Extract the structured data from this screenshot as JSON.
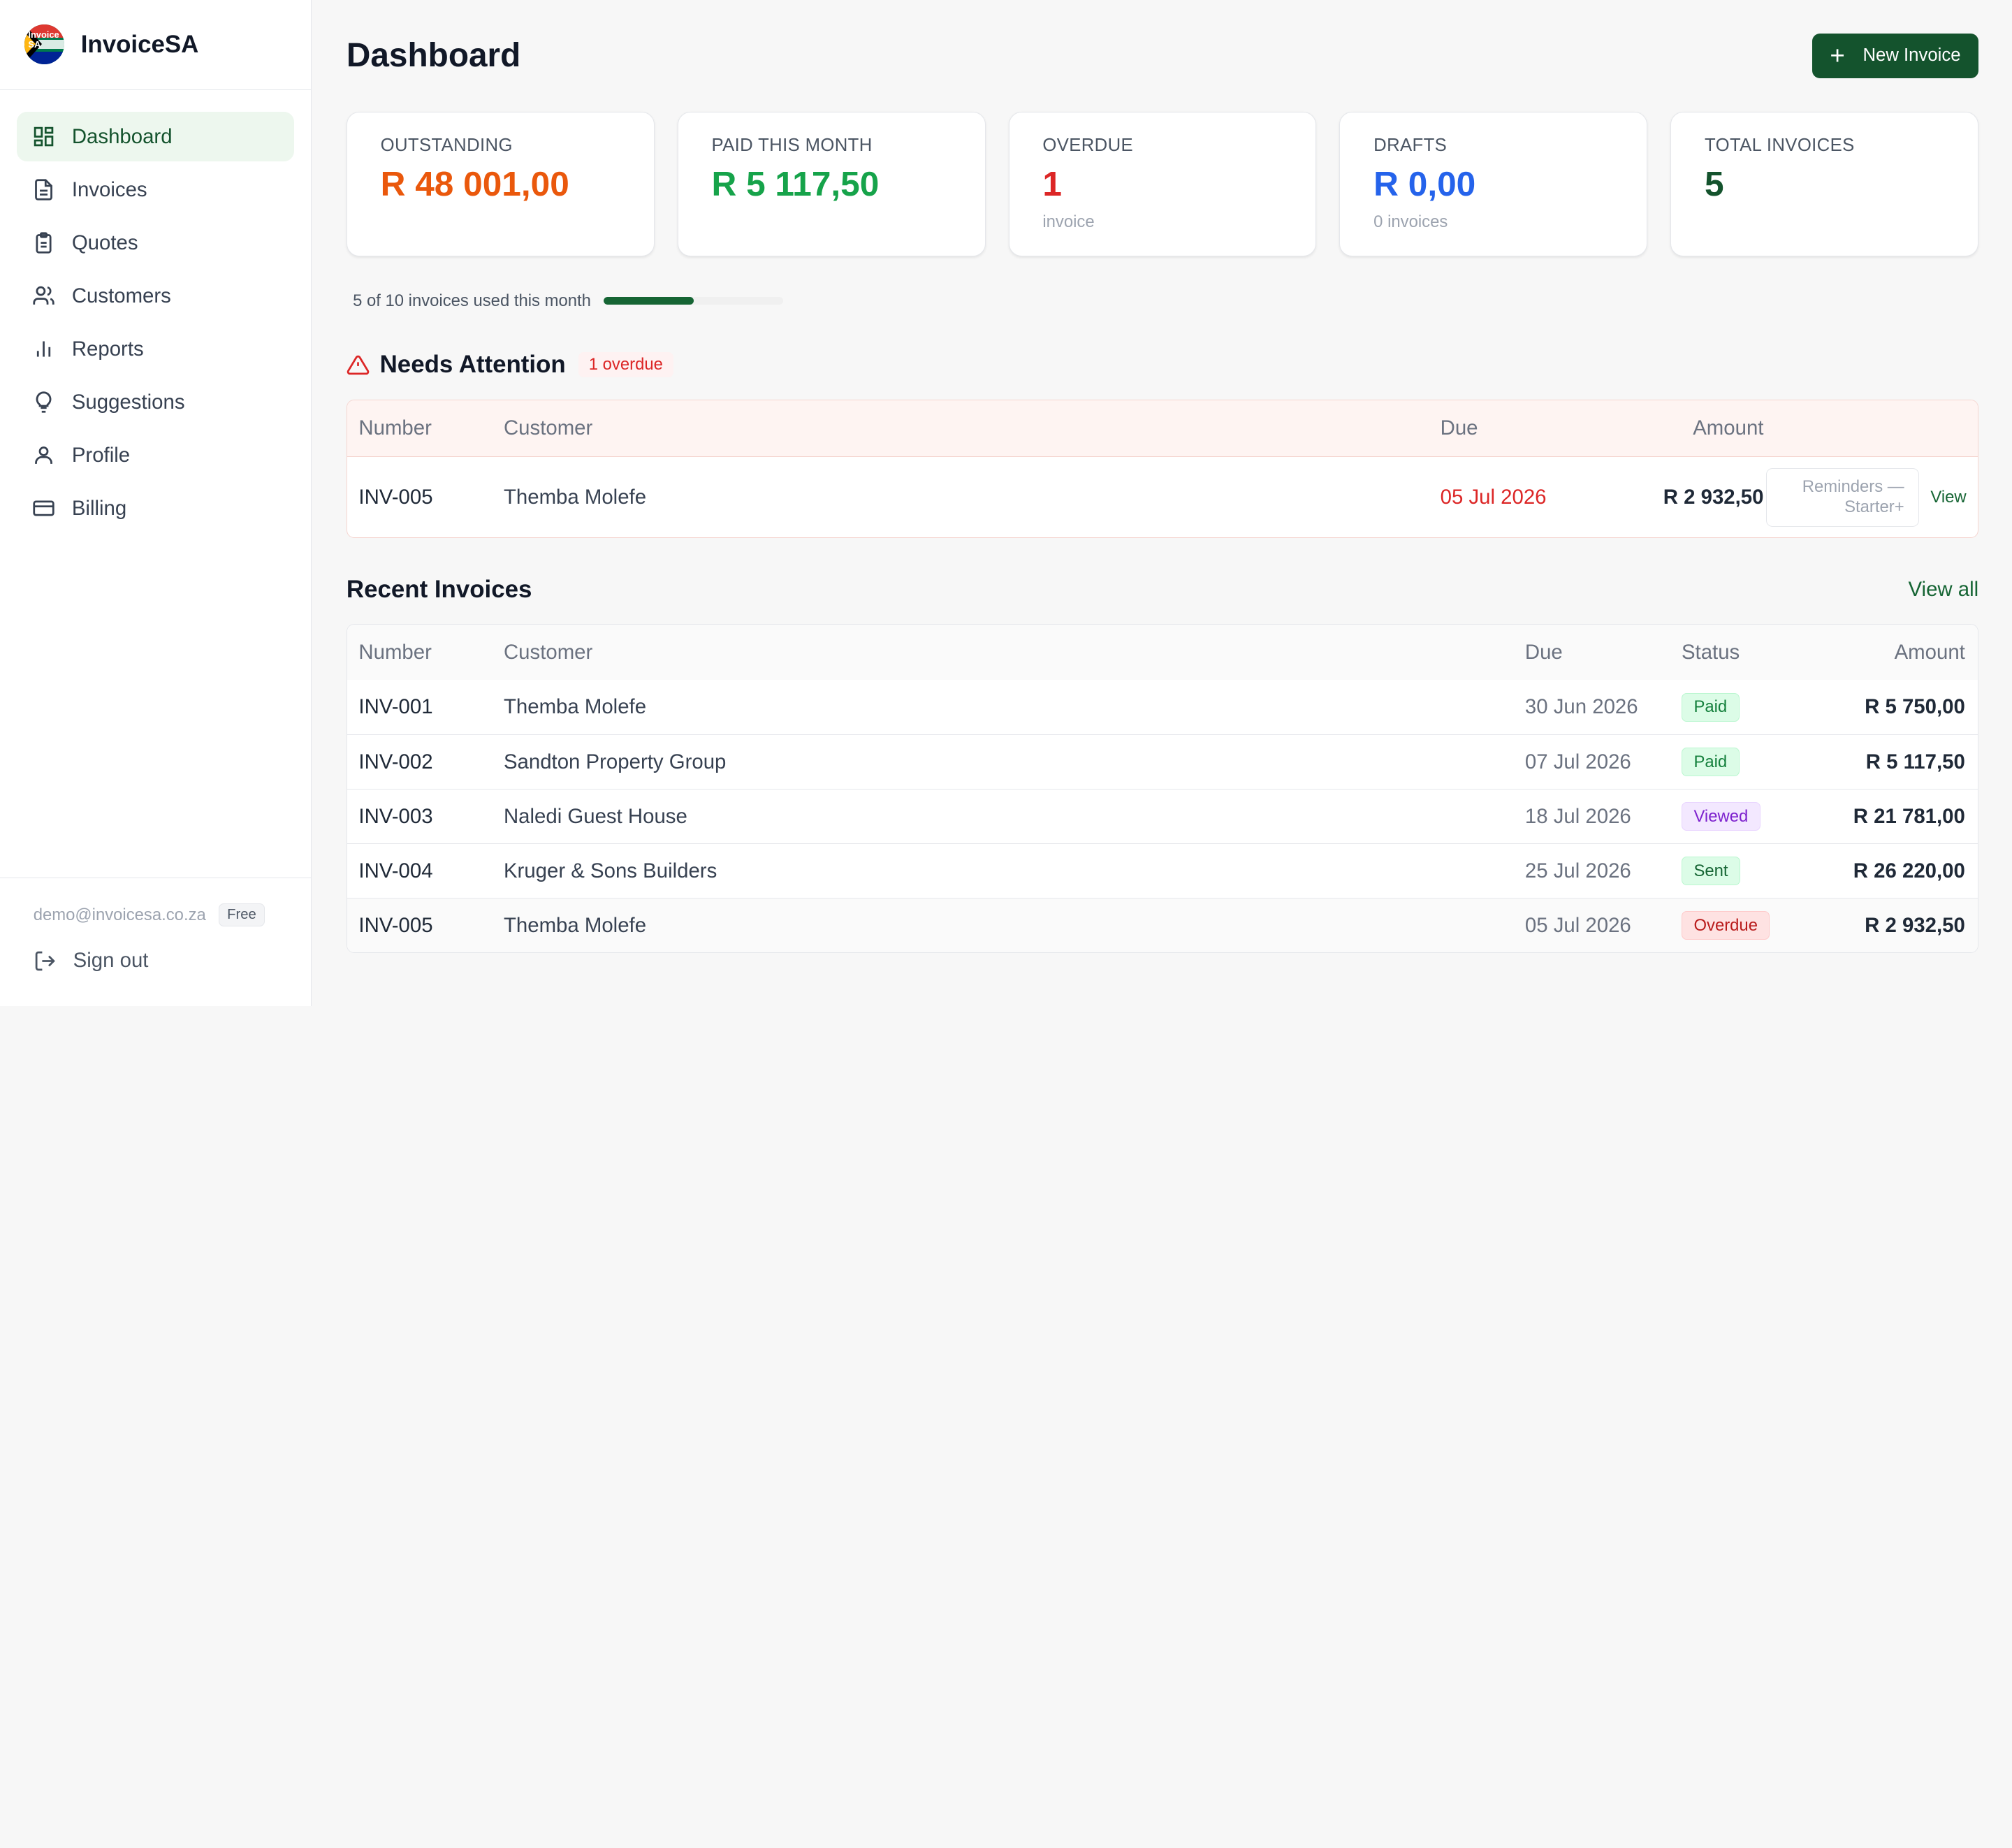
{
  "app": {
    "name": "InvoiceSA",
    "logo_text": "Invoice SA"
  },
  "sidebar": {
    "items": [
      {
        "label": "Dashboard",
        "icon": "dashboard-icon",
        "active": true
      },
      {
        "label": "Invoices",
        "icon": "document-icon"
      },
      {
        "label": "Quotes",
        "icon": "clipboard-icon"
      },
      {
        "label": "Customers",
        "icon": "users-icon"
      },
      {
        "label": "Reports",
        "icon": "bar-chart-icon"
      },
      {
        "label": "Suggestions",
        "icon": "lightbulb-icon"
      },
      {
        "label": "Profile",
        "icon": "user-icon"
      },
      {
        "label": "Billing",
        "icon": "credit-card-icon"
      }
    ],
    "user_email": "demo@invoicesa.co.za",
    "plan": "Free",
    "signout": "Sign out"
  },
  "header": {
    "title": "Dashboard",
    "new_invoice": "New Invoice"
  },
  "stats": {
    "outstanding": {
      "label": "OUTSTANDING",
      "value": "R 48 001,00",
      "color": "#ea580c"
    },
    "paid": {
      "label": "PAID THIS MONTH",
      "value": "R 5 117,50",
      "color": "#16a34a"
    },
    "overdue": {
      "label": "OVERDUE",
      "value": "1",
      "sub": "invoice",
      "color": "#dc2626"
    },
    "drafts": {
      "label": "DRAFTS",
      "value": "R 0,00",
      "sub": "0 invoices",
      "color": "#2563eb"
    },
    "total": {
      "label": "TOTAL INVOICES",
      "value": "5",
      "color": "#14532d"
    }
  },
  "usage": {
    "text": "5 of 10 invoices used this month",
    "used": 5,
    "limit": 10
  },
  "attention": {
    "title": "Needs Attention",
    "badge": "1 overdue",
    "columns": {
      "number": "Number",
      "customer": "Customer",
      "due": "Due",
      "amount": "Amount"
    },
    "rows": [
      {
        "number": "INV-005",
        "customer": "Themba Molefe",
        "due": "05 Jul 2026",
        "amount": "R 2 932,50",
        "reminder_line1": "Reminders —",
        "reminder_line2": "Starter+",
        "view": "View"
      }
    ]
  },
  "recent": {
    "title": "Recent Invoices",
    "view_all": "View all",
    "columns": {
      "number": "Number",
      "customer": "Customer",
      "due": "Due",
      "status": "Status",
      "amount": "Amount"
    },
    "rows": [
      {
        "number": "INV-001",
        "customer": "Themba Molefe",
        "due": "30 Jun 2026",
        "status": "Paid",
        "amount": "R 5 750,00"
      },
      {
        "number": "INV-002",
        "customer": "Sandton Property Group",
        "due": "07 Jul 2026",
        "status": "Paid",
        "amount": "R 5 117,50"
      },
      {
        "number": "INV-003",
        "customer": "Naledi Guest House",
        "due": "18 Jul 2026",
        "status": "Viewed",
        "amount": "R 21 781,00"
      },
      {
        "number": "INV-004",
        "customer": "Kruger & Sons Builders",
        "due": "25 Jul 2026",
        "status": "Sent",
        "amount": "R 26 220,00"
      },
      {
        "number": "INV-005",
        "customer": "Themba Molefe",
        "due": "05 Jul 2026",
        "status": "Overdue",
        "amount": "R 2 932,50"
      }
    ]
  },
  "status_colors": {
    "Paid": {
      "bg": "#dcfce7",
      "fg": "#15803d",
      "border": "#bbf7d0"
    },
    "Viewed": {
      "bg": "#f3e8ff",
      "fg": "#7e22ce",
      "border": "#e9d5ff"
    },
    "Sent": {
      "bg": "#dcfce7",
      "fg": "#166534",
      "border": "#bbf7d0"
    },
    "Overdue": {
      "bg": "#fee2e2",
      "fg": "#b91c1c",
      "border": "#fecaca"
    }
  }
}
